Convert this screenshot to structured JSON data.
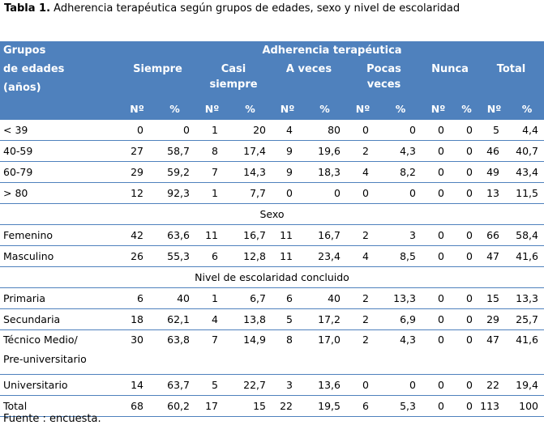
{
  "caption": {
    "label": "Tabla 1.",
    "text": " Adherencia terapéutica según grupos de edades, sexo y nivel de escolaridad"
  },
  "header": {
    "group_label_lines": [
      "Grupos",
      "de edades",
      "(años)"
    ],
    "adherence_title": "Adherencia terapéutica",
    "categories": {
      "siempre": "Siempre",
      "casi_siempre": [
        "Casi",
        "siempre"
      ],
      "a_veces": "A veces",
      "pocas_veces": [
        "Pocas",
        "veces"
      ],
      "nunca": "Nunca",
      "total": "Total"
    },
    "count_label": "Nº",
    "pct_label": "%"
  },
  "groups": {
    "age": [
      {
        "label": "< 39",
        "values": [
          "0",
          "0",
          "1",
          "20",
          "4",
          "80",
          "0",
          "0",
          "0",
          "0",
          "5",
          "4,4"
        ]
      },
      {
        "label": "40-59",
        "values": [
          "27",
          "58,7",
          "8",
          "17,4",
          "9",
          "19,6",
          "2",
          "4,3",
          "0",
          "0",
          "46",
          "40,7"
        ]
      },
      {
        "label": "60-79",
        "values": [
          "29",
          "59,2",
          "7",
          "14,3",
          "9",
          "18,3",
          "4",
          "8,2",
          "0",
          "0",
          "49",
          "43,4"
        ]
      },
      {
        "label": "> 80",
        "values": [
          "12",
          "92,3",
          "1",
          "7,7",
          "0",
          "0",
          "0",
          "0",
          "0",
          "0",
          "13",
          "11,5"
        ]
      }
    ],
    "sex_title": "Sexo",
    "sex": [
      {
        "label": "Femenino",
        "values": [
          "42",
          "63,6",
          "11",
          "16,7",
          "11",
          "16,7",
          "2",
          "3",
          "0",
          "0",
          "66",
          "58,4"
        ]
      },
      {
        "label": "Masculino",
        "values": [
          "26",
          "55,3",
          "6",
          "12,8",
          "11",
          "23,4",
          "4",
          "8,5",
          "0",
          "0",
          "47",
          "41,6"
        ]
      }
    ],
    "education_title": "Nivel de escolaridad concluido",
    "education": [
      {
        "label": "Primaria",
        "values": [
          "6",
          "40",
          "1",
          "6,7",
          "6",
          "40",
          "2",
          "13,3",
          "0",
          "0",
          "15",
          "13,3"
        ]
      },
      {
        "label": "Secundaria",
        "values": [
          "18",
          "62,1",
          "4",
          "13,8",
          "5",
          "17,2",
          "2",
          "6,9",
          "0",
          "0",
          "29",
          "25,7"
        ]
      },
      {
        "label_lines": [
          "Técnico Medio/",
          "Pre-universitario"
        ],
        "values": [
          "30",
          "63,8",
          "7",
          "14,9",
          "8",
          "17,0",
          "2",
          "4,3",
          "0",
          "0",
          "47",
          "41,6"
        ]
      },
      {
        "label": "Universitario",
        "values": [
          "14",
          "63,7",
          "5",
          "22,7",
          "3",
          "13,6",
          "0",
          "0",
          "0",
          "0",
          "22",
          "19,4"
        ]
      }
    ],
    "total": {
      "label": "Total",
      "values": [
        "68",
        "60,2",
        "17",
        "15",
        "22",
        "19,5",
        "6",
        "5,3",
        "0",
        "0",
        "113",
        "100"
      ]
    }
  },
  "footnote": "Fuente : encuesta.",
  "colors": {
    "header_bg": "#4f81bd",
    "header_text": "#ffffff",
    "rule": "#4f81bd"
  }
}
